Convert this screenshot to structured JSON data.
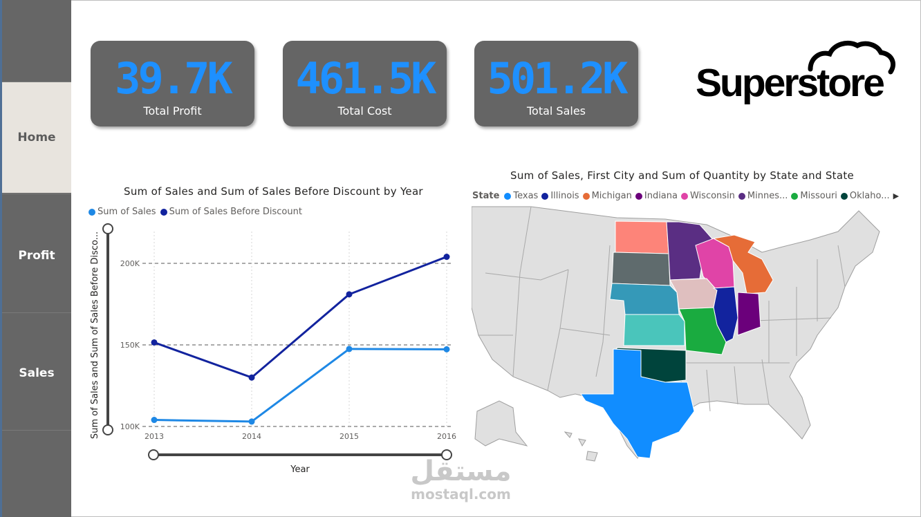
{
  "sidebar": {
    "items": [
      {
        "label": "Home",
        "active": true
      },
      {
        "label": "Profit",
        "active": false
      },
      {
        "label": "Sales",
        "active": false
      }
    ]
  },
  "kpis": [
    {
      "value": "39.7K",
      "label": "Total Profit"
    },
    {
      "value": "461.5K",
      "label": "Total Cost"
    },
    {
      "value": "501.2K",
      "label": "Total Sales"
    }
  ],
  "logo": {
    "text": "Superstore",
    "icon": "cloud-icon"
  },
  "line_chart": {
    "title": "Sum of Sales and Sum of Sales Before Discount by Year",
    "legend": [
      {
        "name": "Sum of Sales",
        "color": "#1e88e5"
      },
      {
        "name": "Sum of Sales Before Discount",
        "color": "#12239e"
      }
    ],
    "xlabel": "Year",
    "ylabel": "Sum of Sales and Sum of Sales Before Disco...",
    "yticks": [
      "200K",
      "150K",
      "100K"
    ],
    "xticks": [
      "2013",
      "2014",
      "2015",
      "2016"
    ]
  },
  "chart_data": {
    "type": "line",
    "x": [
      2013,
      2014,
      2015,
      2016
    ],
    "series": [
      {
        "name": "Sum of Sales",
        "values": [
          104000,
          103000,
          147500,
          147300
        ],
        "color": "#1e88e5"
      },
      {
        "name": "Sum of Sales Before Discount",
        "values": [
          151500,
          130000,
          181000,
          204000
        ],
        "color": "#12239e"
      }
    ],
    "title": "Sum of Sales and Sum of Sales Before Discount by Year",
    "xlabel": "Year",
    "ylabel": "Sum of Sales and Sum of Sales Before Disco...",
    "ylim": [
      100000,
      200000
    ],
    "legend_position": "top-left",
    "grid": true
  },
  "map": {
    "title": "Sum of Sales, First City and Sum of Quantity by State and State",
    "legend_title": "State",
    "legend": [
      {
        "name": "Texas",
        "color": "#118dff"
      },
      {
        "name": "Illinois",
        "color": "#12239e"
      },
      {
        "name": "Michigan",
        "color": "#e66c37"
      },
      {
        "name": "Indiana",
        "color": "#6b007b"
      },
      {
        "name": "Wisconsin",
        "color": "#e044a7"
      },
      {
        "name": "Minnes...",
        "color": "#5a2e83"
      },
      {
        "name": "Missouri",
        "color": "#1aab40"
      },
      {
        "name": "Oklaho...",
        "color": "#00443c"
      }
    ],
    "more_icon": "chevron-right-icon"
  },
  "watermark": {
    "arabic": "مستقل",
    "latin": "mostaql.com"
  }
}
